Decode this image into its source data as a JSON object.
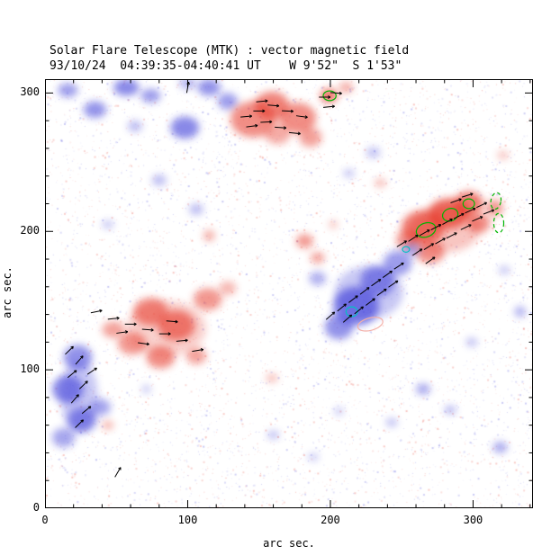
{
  "chart_data": {
    "type": "heatmap",
    "title": "Solar Flare Telescope (MTK) : vector magnetic field",
    "subtitle": "93/10/24  04:39:35-04:40:41 UT    W 9'52\"  S 1'53\"",
    "xlabel": "arc sec.",
    "ylabel": "arc sec.",
    "xlim": [
      0,
      342
    ],
    "ylim": [
      0,
      310
    ],
    "xticks": [
      0,
      100,
      200,
      300
    ],
    "yticks": [
      0,
      100,
      200,
      300
    ],
    "minor_tick_step": 20,
    "grid": false,
    "legend": "none",
    "colors": {
      "positive": "#e53222",
      "negative": "#3a3ad8",
      "vector": "#000000",
      "contour_strong": "#00b400",
      "contour_neutral": "#00c2c2",
      "contour_weak_positive": "#f4b0a8",
      "frame": "#000000",
      "background": "#ffffff"
    },
    "noise": {
      "count": 6000,
      "seed": 987654321
    },
    "vector_length": 8,
    "blobs": [
      [
        16,
        302,
        7,
        5,
        -1,
        0.5
      ],
      [
        35,
        288,
        8,
        6,
        -1,
        0.55
      ],
      [
        57,
        304,
        9,
        6,
        -1,
        0.6
      ],
      [
        74,
        298,
        7,
        5,
        -1,
        0.5
      ],
      [
        98,
        275,
        10,
        8,
        -1,
        0.6
      ],
      [
        115,
        304,
        8,
        6,
        -1,
        0.55
      ],
      [
        128,
        294,
        7,
        6,
        -1,
        0.5
      ],
      [
        63,
        276,
        5,
        4,
        -1,
        0.35
      ],
      [
        100,
        307,
        6,
        4,
        -1,
        0.4
      ],
      [
        146,
        281,
        16,
        13,
        1,
        0.55
      ],
      [
        159,
        291,
        12,
        10,
        1,
        0.6
      ],
      [
        177,
        282,
        13,
        11,
        1,
        0.55
      ],
      [
        186,
        268,
        8,
        7,
        1,
        0.45
      ],
      [
        163,
        270,
        9,
        7,
        1,
        0.4
      ],
      [
        199,
        298,
        6,
        5,
        1,
        0.7
      ],
      [
        211,
        304,
        5,
        4,
        1,
        0.4
      ],
      [
        265,
        203,
        15,
        12,
        1,
        0.65
      ],
      [
        283,
        213,
        14,
        11,
        1,
        0.7
      ],
      [
        297,
        220,
        10,
        9,
        1,
        0.65
      ],
      [
        270,
        185,
        10,
        8,
        1,
        0.55
      ],
      [
        254,
        194,
        8,
        7,
        1,
        0.5
      ],
      [
        304,
        206,
        8,
        7,
        1,
        0.55
      ],
      [
        315,
        217,
        6,
        6,
        1,
        0.5
      ],
      [
        281,
        202,
        24,
        17,
        1,
        0.28
      ],
      [
        218,
        146,
        16,
        14,
        -1,
        0.65
      ],
      [
        233,
        164,
        12,
        11,
        -1,
        0.55
      ],
      [
        247,
        177,
        10,
        9,
        -1,
        0.5
      ],
      [
        206,
        131,
        10,
        9,
        -1,
        0.55
      ],
      [
        191,
        166,
        6,
        5,
        -1,
        0.4
      ],
      [
        257,
        187,
        6,
        5,
        -1,
        0.4
      ],
      [
        227,
        156,
        24,
        19,
        -1,
        0.28
      ],
      [
        74,
        142,
        12,
        10,
        1,
        0.55
      ],
      [
        92,
        132,
        13,
        11,
        1,
        0.6
      ],
      [
        114,
        151,
        10,
        8,
        1,
        0.5
      ],
      [
        61,
        119,
        10,
        8,
        1,
        0.5
      ],
      [
        81,
        109,
        10,
        8,
        1,
        0.55
      ],
      [
        48,
        129,
        8,
        6,
        1,
        0.45
      ],
      [
        106,
        110,
        7,
        6,
        1,
        0.45
      ],
      [
        128,
        159,
        6,
        5,
        1,
        0.35
      ],
      [
        85,
        130,
        28,
        20,
        1,
        0.22
      ],
      [
        23,
        109,
        10,
        9,
        -1,
        0.55
      ],
      [
        16,
        86,
        11,
        10,
        -1,
        0.6
      ],
      [
        26,
        64,
        10,
        9,
        -1,
        0.55
      ],
      [
        39,
        73,
        7,
        6,
        -1,
        0.45
      ],
      [
        13,
        51,
        8,
        7,
        -1,
        0.45
      ],
      [
        24,
        81,
        13,
        26,
        -1,
        0.28
      ],
      [
        265,
        86,
        5,
        4,
        -1,
        0.45
      ],
      [
        284,
        71,
        4,
        3,
        -1,
        0.4
      ],
      [
        243,
        62,
        4,
        3,
        -1,
        0.35
      ],
      [
        319,
        44,
        5,
        4,
        -1,
        0.45
      ],
      [
        299,
        120,
        4,
        3,
        -1,
        0.35
      ],
      [
        333,
        142,
        4,
        4,
        -1,
        0.4
      ],
      [
        160,
        53,
        4,
        3,
        -1,
        0.35
      ],
      [
        206,
        70,
        3,
        3,
        -1,
        0.3
      ],
      [
        235,
        235,
        4,
        3,
        1,
        0.35
      ],
      [
        182,
        193,
        6,
        5,
        1,
        0.5
      ],
      [
        191,
        181,
        5,
        4,
        1,
        0.45
      ],
      [
        115,
        197,
        4,
        4,
        1,
        0.4
      ],
      [
        159,
        94,
        4,
        3,
        1,
        0.35
      ],
      [
        321,
        255,
        4,
        3,
        1,
        0.3
      ],
      [
        213,
        242,
        4,
        3,
        -1,
        0.3
      ],
      [
        80,
        237,
        5,
        4,
        -1,
        0.35
      ],
      [
        44,
        205,
        4,
        3,
        -1,
        0.3
      ],
      [
        106,
        216,
        5,
        4,
        -1,
        0.35
      ],
      [
        44,
        60,
        4,
        3,
        1,
        0.4
      ],
      [
        71,
        86,
        3,
        3,
        -1,
        0.3
      ],
      [
        188,
        37,
        4,
        3,
        -1,
        0.25
      ],
      [
        322,
        172,
        4,
        3,
        -1,
        0.3
      ],
      [
        230,
        257,
        5,
        4,
        -1,
        0.3
      ],
      [
        202,
        205,
        3,
        3,
        1,
        0.3
      ]
    ],
    "vectors": [
      [
        141,
        283,
        5
      ],
      [
        150,
        287,
        0
      ],
      [
        160,
        291,
        -5
      ],
      [
        170,
        287,
        -3
      ],
      [
        180,
        283,
        -8
      ],
      [
        145,
        276,
        8
      ],
      [
        155,
        279,
        3
      ],
      [
        165,
        275,
        -4
      ],
      [
        175,
        271,
        -6
      ],
      [
        152,
        294,
        6
      ],
      [
        196,
        297,
        0
      ],
      [
        204,
        300,
        -5
      ],
      [
        199,
        290,
        6
      ],
      [
        250,
        191,
        32
      ],
      [
        258,
        195,
        34
      ],
      [
        266,
        199,
        30
      ],
      [
        274,
        203,
        28
      ],
      [
        282,
        207,
        30
      ],
      [
        290,
        211,
        28
      ],
      [
        298,
        215,
        25
      ],
      [
        306,
        219,
        26
      ],
      [
        261,
        185,
        35
      ],
      [
        269,
        189,
        33
      ],
      [
        277,
        193,
        30
      ],
      [
        285,
        197,
        28
      ],
      [
        295,
        203,
        26
      ],
      [
        303,
        209,
        24
      ],
      [
        311,
        214,
        22
      ],
      [
        288,
        222,
        20
      ],
      [
        296,
        226,
        18
      ],
      [
        270,
        179,
        36
      ],
      [
        200,
        139,
        42
      ],
      [
        208,
        145,
        40
      ],
      [
        216,
        151,
        38
      ],
      [
        224,
        157,
        38
      ],
      [
        232,
        163,
        36
      ],
      [
        240,
        169,
        36
      ],
      [
        248,
        175,
        34
      ],
      [
        212,
        137,
        42
      ],
      [
        220,
        143,
        40
      ],
      [
        228,
        149,
        38
      ],
      [
        236,
        156,
        36
      ],
      [
        244,
        162,
        35
      ],
      [
        36,
        142,
        12
      ],
      [
        48,
        137,
        6
      ],
      [
        60,
        133,
        0
      ],
      [
        72,
        129,
        -5
      ],
      [
        84,
        126,
        0
      ],
      [
        96,
        121,
        5
      ],
      [
        107,
        114,
        10
      ],
      [
        54,
        127,
        8
      ],
      [
        69,
        119,
        -8
      ],
      [
        89,
        135,
        -5
      ],
      [
        17,
        114,
        45
      ],
      [
        24,
        107,
        50
      ],
      [
        19,
        97,
        40
      ],
      [
        27,
        89,
        45
      ],
      [
        21,
        79,
        50
      ],
      [
        29,
        71,
        40
      ],
      [
        24,
        61,
        45
      ],
      [
        33,
        99,
        35
      ],
      [
        100,
        304,
        80
      ],
      [
        51,
        26,
        60
      ]
    ],
    "contours": [
      {
        "x": 199.5,
        "y": 298,
        "rx": 4.5,
        "ry": 3.5,
        "color": "#00b400",
        "dashed": false,
        "rot": 0
      },
      {
        "x": 267,
        "y": 201,
        "rx": 7,
        "ry": 5,
        "color": "#00b400",
        "dashed": false,
        "rot": -20
      },
      {
        "x": 284,
        "y": 212,
        "rx": 5.5,
        "ry": 4.5,
        "color": "#00b400",
        "dashed": false,
        "rot": -20
      },
      {
        "x": 297,
        "y": 220,
        "rx": 4,
        "ry": 3.5,
        "color": "#00b400",
        "dashed": false,
        "rot": 0
      },
      {
        "x": 316,
        "y": 222,
        "rx": 3.5,
        "ry": 6,
        "color": "#00b400",
        "dashed": true,
        "rot": 10
      },
      {
        "x": 318,
        "y": 206,
        "rx": 3.5,
        "ry": 7,
        "color": "#00b400",
        "dashed": true,
        "rot": 0
      },
      {
        "x": 215,
        "y": 142,
        "rx": 4,
        "ry": 3.5,
        "color": "#00c2c2",
        "dashed": false,
        "rot": 0
      },
      {
        "x": 253,
        "y": 187,
        "rx": 2.5,
        "ry": 2,
        "color": "#00c2c2",
        "dashed": false,
        "rot": 0
      },
      {
        "x": 228,
        "y": 133,
        "rx": 9,
        "ry": 4.5,
        "color": "#f4b0a8",
        "dashed": false,
        "rot": -15
      }
    ]
  }
}
